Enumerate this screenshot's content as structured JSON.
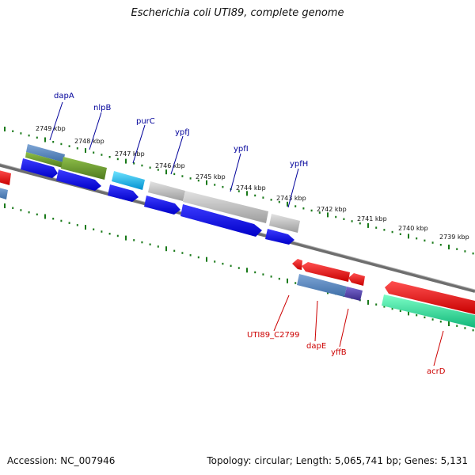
{
  "title": "Escherichia coli UTI89, complete genome",
  "footer": {
    "accession": "Accession: NC_007946",
    "summary": "Topology: circular; Length: 5,065,741 bp; Genes: 5,131"
  },
  "colors": {
    "top_label": "#00009a",
    "bottom_label": "#cc0000",
    "backbone": "#7a7a7a",
    "ticks": "#1a7a1a"
  },
  "kbp_labels": [
    "2749 kbp",
    "2748 kbp",
    "2747 kbp",
    "2746 kbp",
    "2745 kbp",
    "2744 kbp",
    "2743 kbp",
    "2742 kbp",
    "2741 kbp",
    "2740 kbp",
    "2739 kbp"
  ],
  "top_genes": [
    "dapA",
    "nlpB",
    "purC",
    "ypfJ",
    "ypfI",
    "ypfH"
  ],
  "bottom_genes": [
    "UTI89_C2799",
    "dapE",
    "yffB",
    "acrD"
  ]
}
